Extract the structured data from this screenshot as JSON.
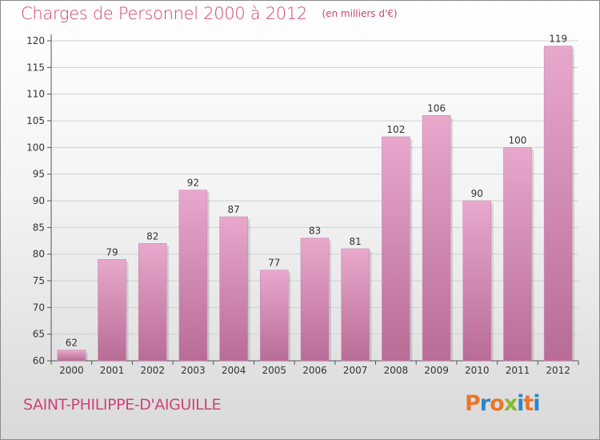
{
  "header": {
    "title": "Charges de Personnel 2000 à 2012",
    "unit": "(en milliers d'€)"
  },
  "footer": {
    "commune": "SAINT-PHILIPPE-D'AIGUILLE",
    "logo": "Proxiti"
  },
  "colors": {
    "accent": "#cc4477",
    "bar_top": "#e8a8cc",
    "bar_bottom": "#b86c96",
    "logo_letters": [
      "#e8772e",
      "#2e86c8",
      "#e8772e",
      "#8cb832",
      "#2e86c8",
      "#e8772e",
      "#2e86c8"
    ]
  },
  "chart_data": {
    "type": "bar",
    "categories": [
      "2000",
      "2001",
      "2002",
      "2003",
      "2004",
      "2005",
      "2006",
      "2007",
      "2008",
      "2009",
      "2010",
      "2011",
      "2012"
    ],
    "values": [
      62,
      79,
      82,
      92,
      87,
      77,
      83,
      81,
      102,
      106,
      90,
      100,
      119
    ],
    "value_labels": [
      "62",
      "79",
      "82",
      "92",
      "87",
      "77",
      "83",
      "81",
      "102",
      "106",
      "90",
      "100",
      "119"
    ],
    "title": "Charges de Personnel 2000 à 2012",
    "xlabel": "",
    "ylabel": "",
    "ylim": [
      60,
      122
    ],
    "yticks": [
      60,
      65,
      70,
      75,
      80,
      85,
      90,
      95,
      100,
      105,
      110,
      115,
      120
    ],
    "grid": true,
    "legend": "none"
  }
}
